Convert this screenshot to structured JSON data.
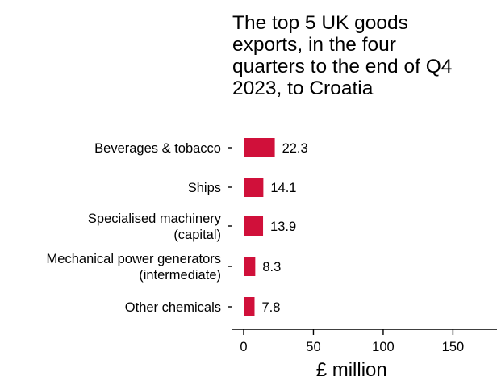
{
  "chart_data": {
    "type": "bar",
    "orientation": "horizontal",
    "title": "The top 5 UK goods exports, in the four quarters to the end of Q4 2023, to Croatia",
    "title_lines": [
      "The top 5 UK goods",
      "exports, in the four",
      "quarters to the end of Q4",
      "2023, to Croatia"
    ],
    "categories": [
      "Beverages & tobacco",
      "Ships",
      "Specialised machinery (capital)",
      "Mechanical power generators (intermediate)",
      "Other chemicals"
    ],
    "category_lines": [
      [
        "Beverages & tobacco"
      ],
      [
        "Ships"
      ],
      [
        "Specialised machinery",
        "(capital)"
      ],
      [
        "Mechanical power generators",
        "(intermediate)"
      ],
      [
        "Other chemicals"
      ]
    ],
    "values": [
      22.3,
      14.1,
      13.9,
      8.3,
      7.8
    ],
    "value_labels": [
      "22.3",
      "14.1",
      "13.9",
      "8.3",
      "7.8"
    ],
    "xlabel": "£ million",
    "ylabel": "",
    "xlim": [
      0,
      170
    ],
    "xticks": [
      0,
      50,
      100,
      150
    ],
    "xtick_labels": [
      "0",
      "50",
      "100",
      "150"
    ],
    "grid": false,
    "legend": "none",
    "bar_color": "#d0103a",
    "axis_color": "#000000"
  }
}
